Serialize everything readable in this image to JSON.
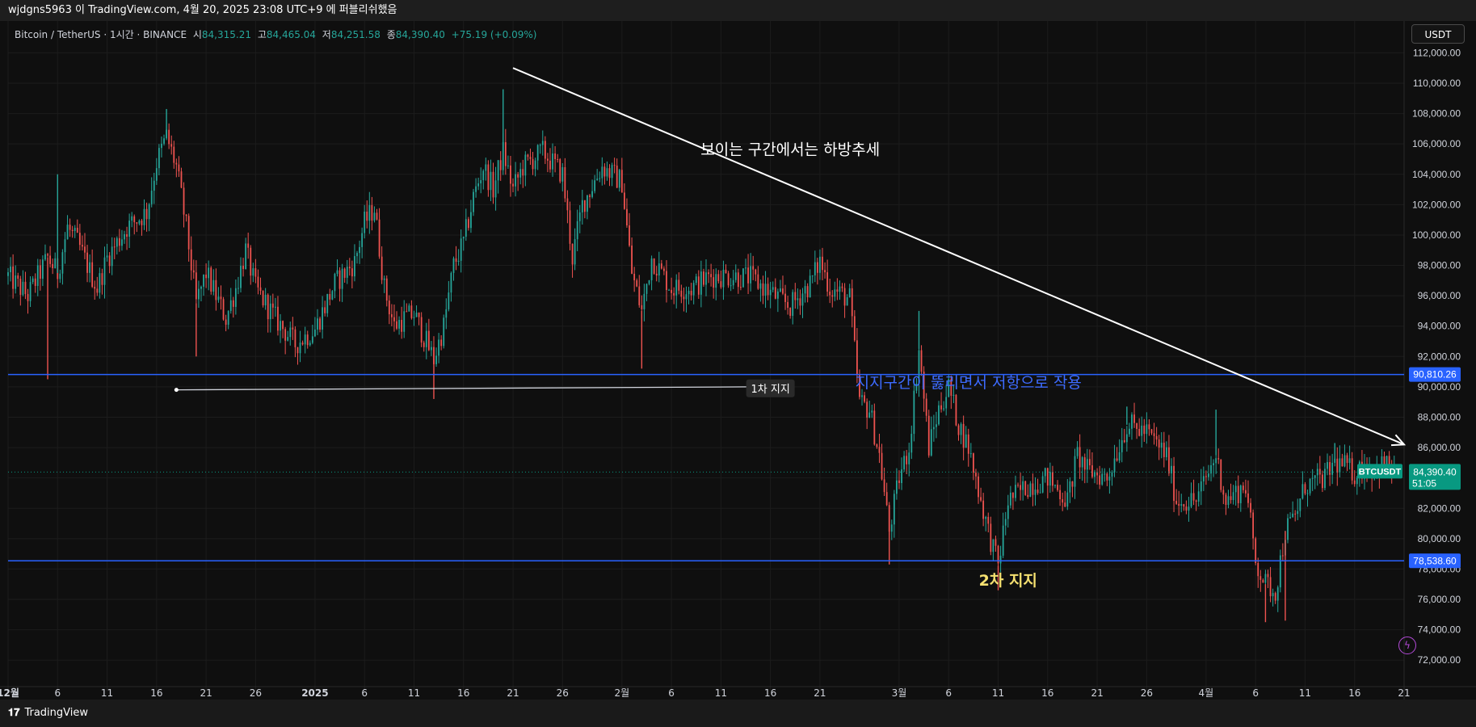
{
  "header": {
    "publisher_line": "wjdgns5963 이 TradingView.com, 4월 20, 2025 23:08 UTC+9 에 퍼블리쉬했음"
  },
  "legend": {
    "symbol": "Bitcoin / TetherUS · 1시간 · BINANCE",
    "open_label": "시",
    "open": "84,315.21",
    "high_label": "고",
    "high": "84,465.04",
    "low_label": "저",
    "low": "84,251.58",
    "close_label": "종",
    "close": "84,390.40",
    "change": "+75.19 (+0.09%)"
  },
  "toolbar": {
    "currency": "USDT"
  },
  "footer": {
    "brand": "TradingView",
    "logo_glyph": "𝟏𝟕"
  },
  "colors": {
    "background": "#0f0f0f",
    "grid": "#1c1c1c",
    "up": "#26a69a",
    "down": "#ef5350",
    "hline": "#2962ff",
    "trend": "#ffffff",
    "price_tag": "#089981",
    "annotation_blue": "#3d6bff",
    "annotation_yellow": "#f5e070"
  },
  "chart_data": {
    "type": "candlestick",
    "symbol": "BTCUSDT",
    "interval": "1시간",
    "x_axis_ticks": [
      "12월",
      "6",
      "11",
      "16",
      "21",
      "26",
      "2025",
      "6",
      "11",
      "16",
      "21",
      "26",
      "2월",
      "6",
      "11",
      "16",
      "21",
      "3월",
      "6",
      "11",
      "16",
      "21",
      "26",
      "4월",
      "6",
      "11",
      "16",
      "21"
    ],
    "x_axis_dates": [
      "2024-12-01",
      "2024-12-06",
      "2024-12-11",
      "2024-12-16",
      "2024-12-21",
      "2024-12-26",
      "2025-01-01",
      "2025-01-06",
      "2025-01-11",
      "2025-01-16",
      "2025-01-21",
      "2025-01-26",
      "2025-02-01",
      "2025-02-06",
      "2025-02-11",
      "2025-02-16",
      "2025-02-21",
      "2025-03-01",
      "2025-03-06",
      "2025-03-11",
      "2025-03-16",
      "2025-03-21",
      "2025-03-26",
      "2025-04-01",
      "2025-04-06",
      "2025-04-11",
      "2025-04-16",
      "2025-04-21"
    ],
    "y_axis_ticks": [
      "72,000.00",
      "74,000.00",
      "76,000.00",
      "78,000.00",
      "80,000.00",
      "82,000.00",
      "84,000.00",
      "86,000.00",
      "88,000.00",
      "90,000.00",
      "92,000.00",
      "94,000.00",
      "96,000.00",
      "98,000.00",
      "100,000.00",
      "102,000.00",
      "104,000.00",
      "106,000.00",
      "108,000.00",
      "110,000.00",
      "112,000.00"
    ],
    "ylim": [
      71000,
      112500
    ],
    "xlim": [
      "2024-12-01",
      "2025-04-21"
    ],
    "price_path": [
      [
        "2024-12-01",
        97300
      ],
      [
        "2024-12-03",
        96000
      ],
      [
        "2024-12-05",
        98500
      ],
      [
        "2024-12-06",
        97500
      ],
      [
        "2024-12-07",
        100500
      ],
      [
        "2024-12-08",
        99500
      ],
      [
        "2024-12-10",
        96500
      ],
      [
        "2024-12-11",
        98500
      ],
      [
        "2024-12-13",
        100500
      ],
      [
        "2024-12-15",
        101500
      ],
      [
        "2024-12-16",
        104800
      ],
      [
        "2024-12-17",
        106500
      ],
      [
        "2024-12-18",
        104500
      ],
      [
        "2024-12-19",
        100500
      ],
      [
        "2024-12-20",
        95500
      ],
      [
        "2024-12-21",
        97500
      ],
      [
        "2024-12-23",
        94500
      ],
      [
        "2024-12-24",
        96500
      ],
      [
        "2024-12-25",
        99000
      ],
      [
        "2024-12-26",
        96500
      ],
      [
        "2024-12-28",
        94500
      ],
      [
        "2024-12-30",
        92800
      ],
      [
        "2025-01-01",
        93800
      ],
      [
        "2025-01-03",
        96800
      ],
      [
        "2025-01-05",
        98200
      ],
      [
        "2025-01-06",
        100800
      ],
      [
        "2025-01-07",
        101800
      ],
      [
        "2025-01-08",
        96500
      ],
      [
        "2025-01-09",
        94000
      ],
      [
        "2025-01-10",
        94500
      ],
      [
        "2025-01-11",
        94800
      ],
      [
        "2025-01-13",
        91800
      ],
      [
        "2025-01-14",
        94000
      ],
      [
        "2025-01-15",
        98000
      ],
      [
        "2025-01-16",
        99500
      ],
      [
        "2025-01-17",
        102500
      ],
      [
        "2025-01-18",
        104500
      ],
      [
        "2025-01-19",
        103000
      ],
      [
        "2025-01-20",
        105500
      ],
      [
        "2025-01-21",
        103000
      ],
      [
        "2025-01-22",
        104500
      ],
      [
        "2025-01-24",
        105500
      ],
      [
        "2025-01-26",
        104000
      ],
      [
        "2025-01-27",
        98500
      ],
      [
        "2025-01-28",
        102000
      ],
      [
        "2025-01-30",
        104500
      ],
      [
        "2025-02-01",
        103500
      ],
      [
        "2025-02-02",
        97500
      ],
      [
        "2025-02-03",
        95000
      ],
      [
        "2025-02-04",
        98500
      ],
      [
        "2025-02-06",
        96500
      ],
      [
        "2025-02-08",
        96500
      ],
      [
        "2025-02-10",
        97300
      ],
      [
        "2025-02-12",
        97300
      ],
      [
        "2025-02-14",
        97200
      ],
      [
        "2025-02-16",
        96200
      ],
      [
        "2025-02-18",
        95300
      ],
      [
        "2025-02-20",
        96800
      ],
      [
        "2025-02-21",
        98300
      ],
      [
        "2025-02-22",
        96500
      ],
      [
        "2025-02-24",
        95800
      ],
      [
        "2025-02-25",
        89000
      ],
      [
        "2025-02-26",
        88500
      ],
      [
        "2025-02-27",
        85500
      ],
      [
        "2025-02-28",
        80500
      ],
      [
        "2025-03-01",
        84000
      ],
      [
        "2025-03-02",
        86000
      ],
      [
        "2025-03-03",
        92500
      ],
      [
        "2025-03-04",
        86000
      ],
      [
        "2025-03-05",
        88500
      ],
      [
        "2025-03-06",
        90000
      ],
      [
        "2025-03-07",
        87500
      ],
      [
        "2025-03-08",
        86000
      ],
      [
        "2025-03-10",
        80500
      ],
      [
        "2025-03-11",
        78200
      ],
      [
        "2025-03-12",
        82500
      ],
      [
        "2025-03-14",
        83500
      ],
      [
        "2025-03-16",
        84000
      ],
      [
        "2025-03-18",
        82500
      ],
      [
        "2025-03-19",
        85500
      ],
      [
        "2025-03-20",
        84500
      ],
      [
        "2025-03-22",
        84000
      ],
      [
        "2025-03-24",
        87500
      ],
      [
        "2025-03-26",
        87000
      ],
      [
        "2025-03-28",
        85500
      ],
      [
        "2025-03-29",
        82500
      ],
      [
        "2025-03-31",
        82500
      ],
      [
        "2025-04-02",
        85500
      ],
      [
        "2025-04-03",
        82500
      ],
      [
        "2025-04-05",
        83500
      ],
      [
        "2025-04-06",
        78500
      ],
      [
        "2025-04-07",
        77000
      ],
      [
        "2025-04-08",
        76500
      ],
      [
        "2025-04-09",
        80500
      ],
      [
        "2025-04-10",
        81500
      ],
      [
        "2025-04-11",
        83500
      ],
      [
        "2025-04-13",
        84000
      ],
      [
        "2025-04-14",
        85000
      ],
      [
        "2025-04-15",
        84800
      ],
      [
        "2025-04-16",
        84300
      ],
      [
        "2025-04-17",
        84800
      ],
      [
        "2025-04-18",
        84500
      ],
      [
        "2025-04-19",
        85000
      ],
      [
        "2025-04-20",
        84390
      ]
    ],
    "wick_marks": [
      [
        "2024-12-05",
        90500
      ],
      [
        "2024-12-06",
        104000
      ],
      [
        "2024-12-17",
        108300
      ],
      [
        "2024-12-20",
        92000
      ],
      [
        "2025-01-13",
        89200
      ],
      [
        "2025-01-20",
        109600
      ],
      [
        "2025-02-03",
        91200
      ],
      [
        "2025-02-28",
        78300
      ],
      [
        "2025-03-03",
        95000
      ],
      [
        "2025-03-11",
        76600
      ],
      [
        "2025-03-24",
        88700
      ],
      [
        "2025-04-02",
        88500
      ],
      [
        "2025-04-07",
        74500
      ],
      [
        "2025-04-09",
        74600
      ],
      [
        "2025-04-14",
        86300
      ]
    ],
    "horizontal_lines": [
      {
        "price": 90810.26,
        "label": "90,810.26"
      },
      {
        "price": 78538.6,
        "label": "78,538.60"
      }
    ],
    "last_price": {
      "ticker": "BTCUSDT",
      "price": "84,390.40",
      "countdown": "51:05",
      "value": 84390.4
    },
    "trend_line": {
      "from": [
        "2025-01-21",
        111000
      ],
      "to": [
        "2025-04-21",
        86200
      ],
      "arrow": true
    },
    "support_ray": {
      "from": [
        "2024-12-18",
        89800
      ],
      "to": [
        "2025-02-14",
        90000
      ]
    },
    "annotations": [
      {
        "text": "보이는 구간에서는 하방추세",
        "date": "2025-02-18",
        "price": 105300,
        "color": "trend",
        "size": 19
      },
      {
        "text": "1차 지지",
        "date": "2025-02-16",
        "price": 89900,
        "color": "label_box",
        "size": 13
      },
      {
        "text": "지지구간이 뚫리면서 저항으로 작용",
        "date": "2025-03-08",
        "price": 89950,
        "color": "annotation_blue",
        "size": 19
      },
      {
        "text": "2차 지지",
        "date": "2025-03-12",
        "price": 76900,
        "color": "annotation_yellow",
        "size": 19
      }
    ]
  }
}
